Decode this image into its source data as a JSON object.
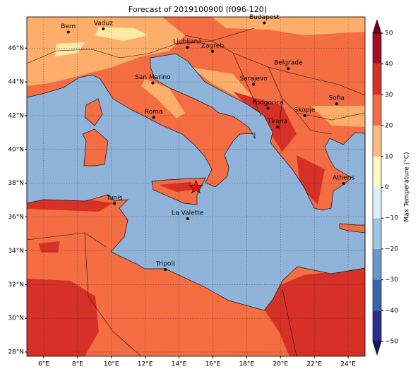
{
  "chart_data": {
    "type": "map",
    "title": "Forecast of 2019100900 (f096-120)",
    "xlim": [
      5,
      25
    ],
    "ylim": [
      27.75,
      47.85
    ],
    "xticks": [
      {
        "value": 6,
        "label": "6°E"
      },
      {
        "value": 8,
        "label": "8°E"
      },
      {
        "value": 10,
        "label": "10°E"
      },
      {
        "value": 12,
        "label": "12°E"
      },
      {
        "value": 14,
        "label": "14°E"
      },
      {
        "value": 16,
        "label": "16°E"
      },
      {
        "value": 18,
        "label": "18°E"
      },
      {
        "value": 20,
        "label": "20°E"
      },
      {
        "value": 22,
        "label": "22°E"
      },
      {
        "value": 24,
        "label": "24°E"
      }
    ],
    "yticks": [
      {
        "value": 28,
        "label": "28°N"
      },
      {
        "value": 30,
        "label": "30°N"
      },
      {
        "value": 32,
        "label": "32°N"
      },
      {
        "value": 34,
        "label": "34°N"
      },
      {
        "value": 36,
        "label": "36°N"
      },
      {
        "value": 38,
        "label": "38°N"
      },
      {
        "value": 40,
        "label": "40°N"
      },
      {
        "value": 42,
        "label": "42°N"
      },
      {
        "value": 44,
        "label": "44°N"
      },
      {
        "value": 46,
        "label": "46°N"
      }
    ],
    "grid": true,
    "cities": [
      {
        "name": "Bern",
        "lon": 7.45,
        "lat": 46.95
      },
      {
        "name": "Vaduz",
        "lon": 9.52,
        "lat": 47.14
      },
      {
        "name": "Budapest",
        "lon": 19.04,
        "lat": 47.5
      },
      {
        "name": "Ljubljana",
        "lon": 14.5,
        "lat": 46.05
      },
      {
        "name": "Zagreb",
        "lon": 15.98,
        "lat": 45.81
      },
      {
        "name": "Belgrade",
        "lon": 20.46,
        "lat": 44.79
      },
      {
        "name": "San Marino",
        "lon": 12.45,
        "lat": 43.94
      },
      {
        "name": "Sarajevo",
        "lon": 18.41,
        "lat": 43.86
      },
      {
        "name": "Roma",
        "lon": 12.5,
        "lat": 41.9
      },
      {
        "name": "Podgorica",
        "lon": 19.26,
        "lat": 42.44
      },
      {
        "name": "Skopje",
        "lon": 21.43,
        "lat": 42.0
      },
      {
        "name": "Sofia",
        "lon": 23.32,
        "lat": 42.7
      },
      {
        "name": "Tirana",
        "lon": 19.82,
        "lat": 41.33
      },
      {
        "name": "Athens",
        "lon": 23.73,
        "lat": 37.98
      },
      {
        "name": "Tunis",
        "lon": 10.18,
        "lat": 36.8
      },
      {
        "name": "La Valette",
        "lon": 14.51,
        "lat": 35.9
      },
      {
        "name": "Tripoli",
        "lon": 13.19,
        "lat": 32.89
      }
    ],
    "marker": {
      "lon": 15.0,
      "lat": 37.75,
      "color": "#e8141c"
    },
    "colorbar": {
      "label": "Max Temperature (°C)",
      "ticks": [
        {
          "value": -50,
          "label": "−50"
        },
        {
          "value": -40,
          "label": "−40"
        },
        {
          "value": -30,
          "label": "−30"
        },
        {
          "value": -20,
          "label": "−20"
        },
        {
          "value": -10,
          "label": "−10"
        },
        0,
        10,
        20,
        30,
        40,
        50
      ],
      "colors": [
        "#2a2c8f",
        "#3c63ad",
        "#6a98c7",
        "#9ec6de",
        "#dcf0f6",
        "#fff7c4",
        "#fdbb84",
        "#f26d44",
        "#d3312a",
        "#a50f26"
      ],
      "under": "#14145c",
      "over": "#7a0020"
    }
  }
}
